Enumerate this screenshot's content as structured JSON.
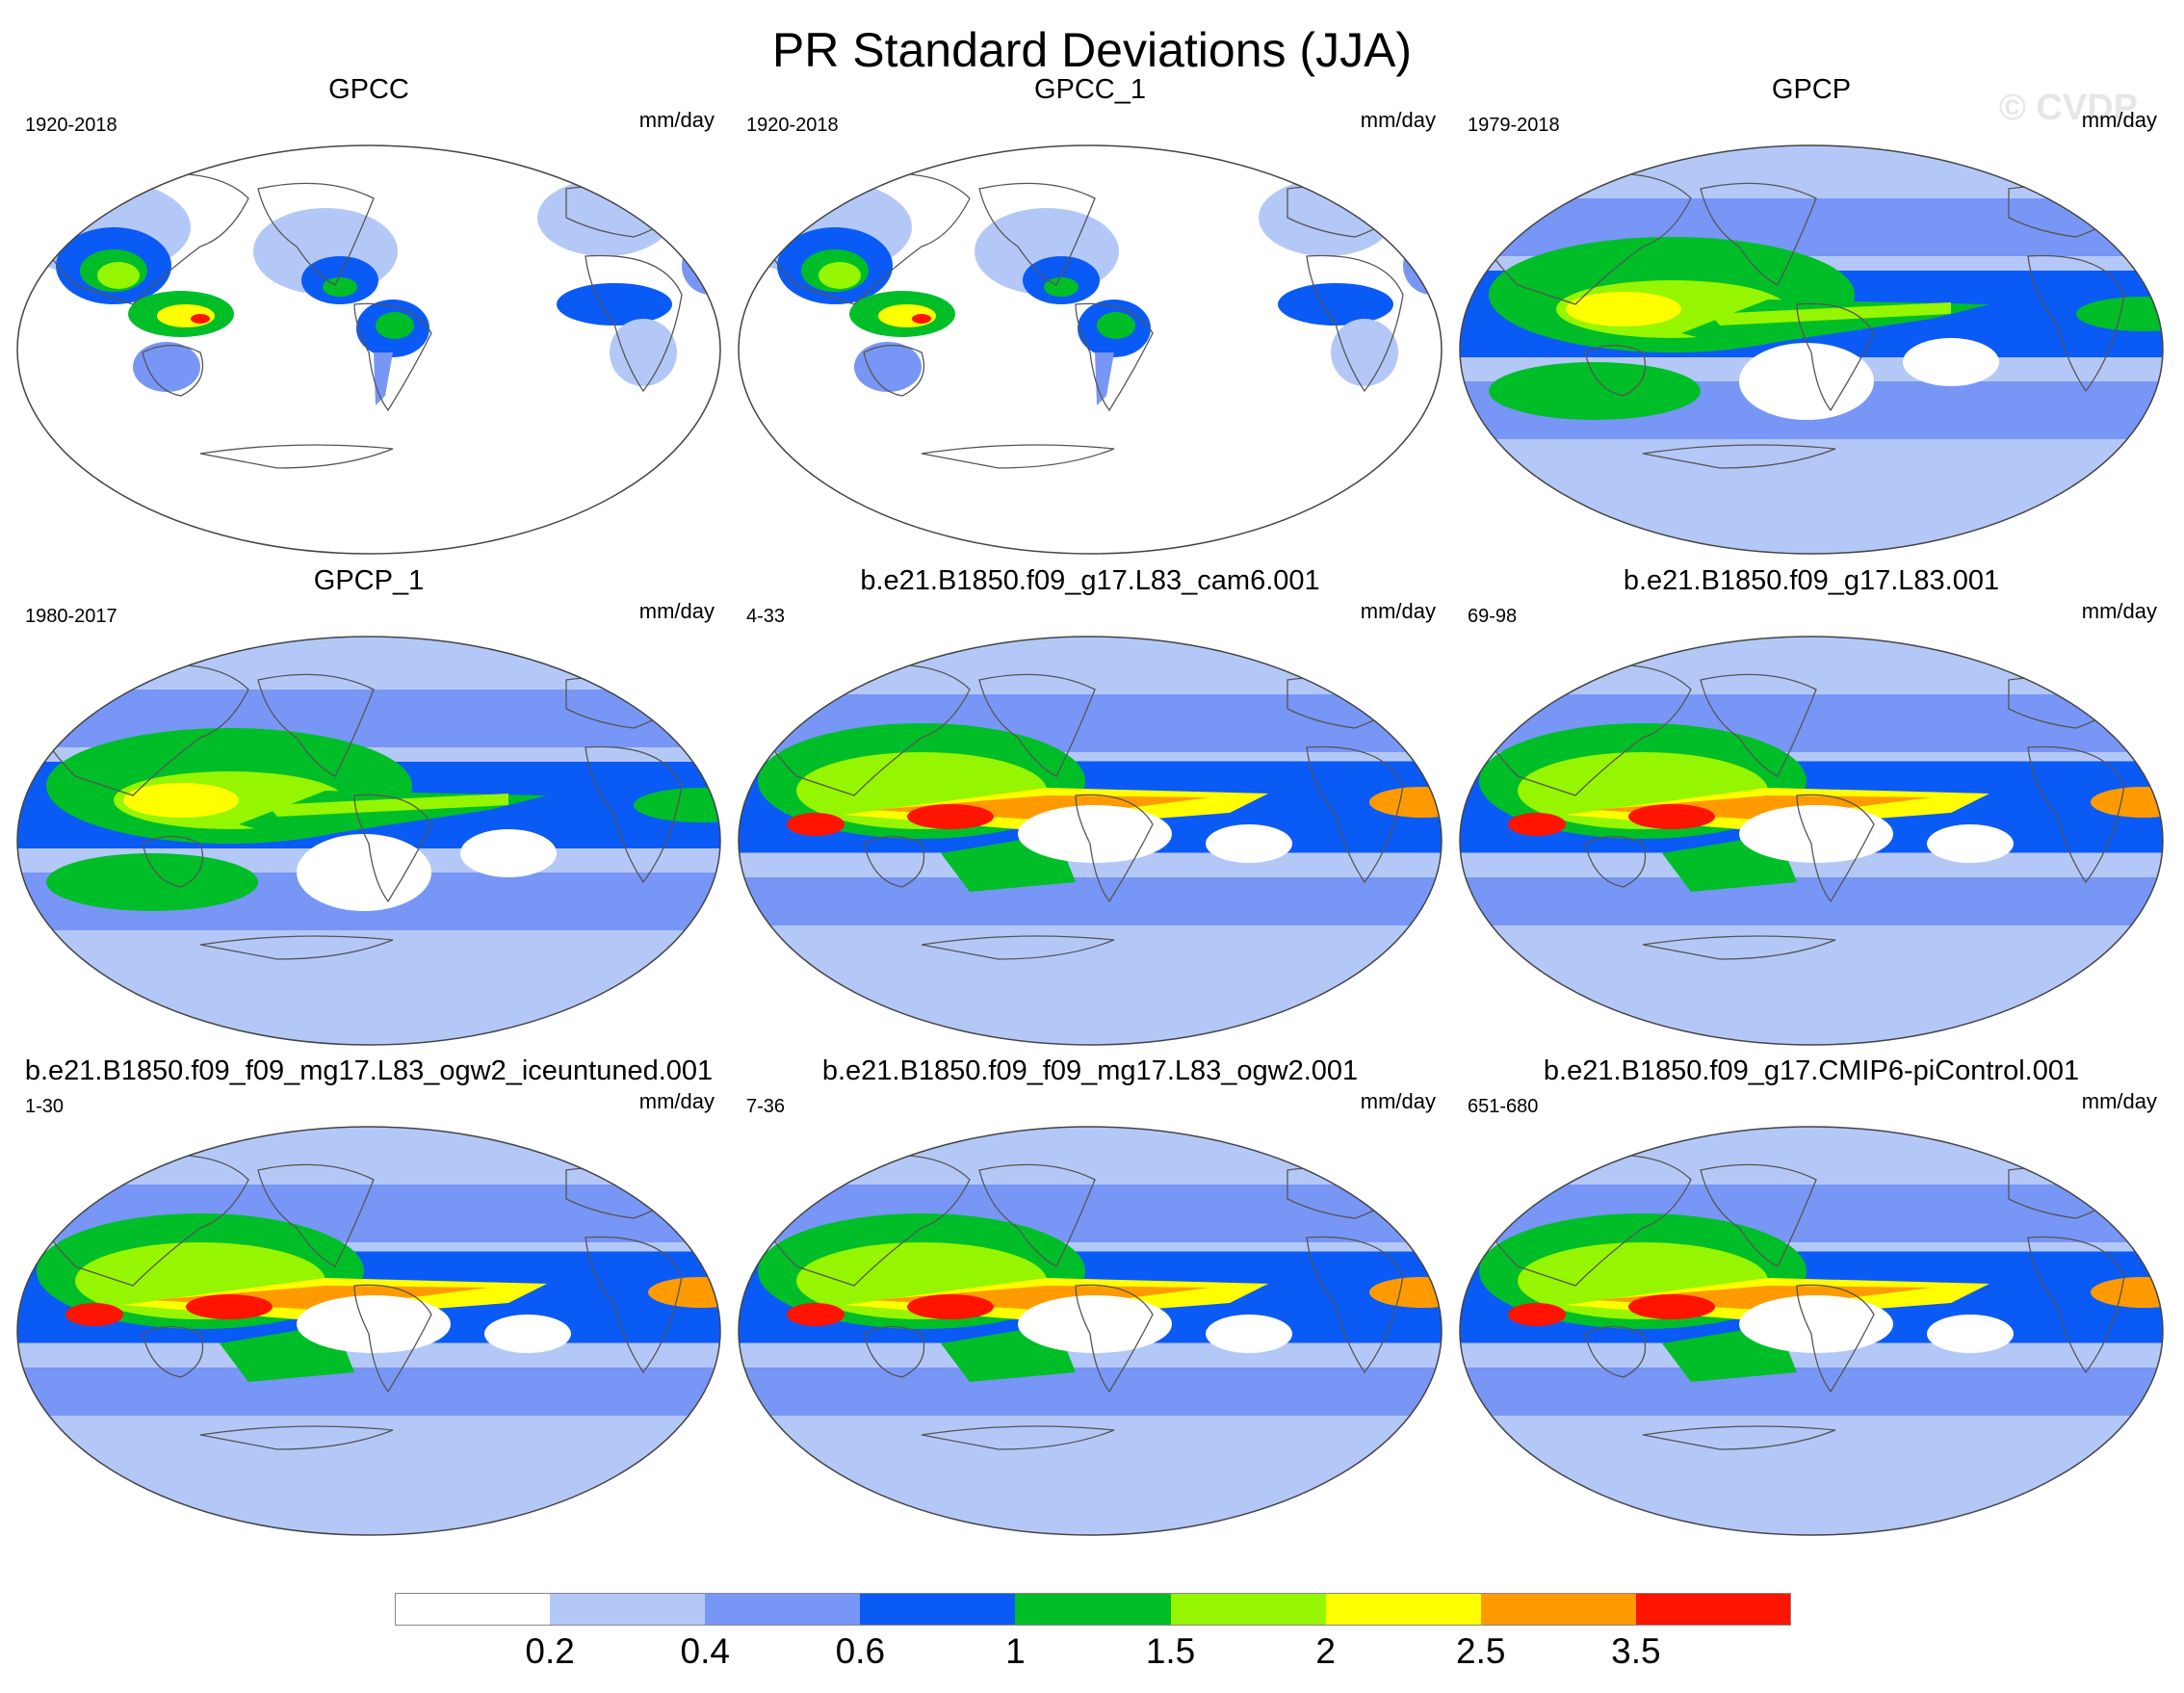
{
  "title": "PR Standard Deviations (JJA)",
  "watermark": "© CVDP",
  "units": "mm/day",
  "panels": [
    {
      "id": "gpcc",
      "title": "GPCC",
      "period": "1920-2018",
      "pattern": "land_only"
    },
    {
      "id": "gpcc_1",
      "title": "GPCC_1",
      "period": "1920-2018",
      "pattern": "land_only"
    },
    {
      "id": "gpcp",
      "title": "GPCP",
      "period": "1979-2018",
      "pattern": "observed"
    },
    {
      "id": "gpcp_1",
      "title": "GPCP_1",
      "period": "1980-2017",
      "pattern": "observed"
    },
    {
      "id": "cam6",
      "title": "b.e21.B1850.f09_g17.L83_cam6.001",
      "period": "4-33",
      "pattern": "model"
    },
    {
      "id": "l83",
      "title": "b.e21.B1850.f09_g17.L83.001",
      "period": "69-98",
      "pattern": "model"
    },
    {
      "id": "iceuntuned",
      "title": "b.e21.B1850.f09_f09_mg17.L83_ogw2_iceuntuned.001",
      "period": "1-30",
      "pattern": "model"
    },
    {
      "id": "ogw2",
      "title": "b.e21.B1850.f09_f09_mg17.L83_ogw2.001",
      "period": "7-36",
      "pattern": "model"
    },
    {
      "id": "picontrol",
      "title": "b.e21.B1850.f09_g17.CMIP6-piControl.001",
      "period": "651-680",
      "pattern": "model"
    }
  ],
  "colorbar": {
    "labels": [
      "0.2",
      "0.4",
      "0.6",
      "1",
      "1.5",
      "2",
      "2.5",
      "3.5"
    ],
    "colors": [
      "#ffffff",
      "#b4c8f8",
      "#7896f5",
      "#0a5af5",
      "#00be28",
      "#96f500",
      "#ffff00",
      "#ff9b00",
      "#ff1400"
    ]
  }
}
